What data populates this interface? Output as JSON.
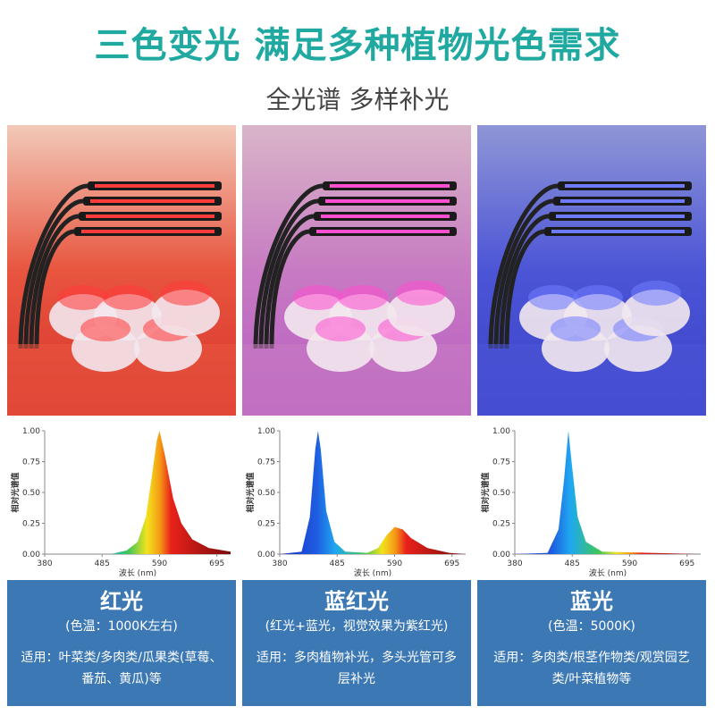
{
  "header": {
    "title": "三色变光 满足多种植物光色需求",
    "subtitle": "全光谱 多样补光"
  },
  "panels": [
    {
      "name": "红光",
      "note": "(色温：1000K左右)",
      "usage": "适用：叶菜类/多肉类/瓜果类(草莓、番茄、黄瓜)等"
    },
    {
      "name": "蓝红光",
      "note": "(红光+蓝光，视觉效果为紫红光)",
      "usage": "适用：多肉植物补光，多头光管可多层补光"
    },
    {
      "name": "蓝光",
      "note": "(色温：5000K)",
      "usage": "适用：多肉类/根茎作物类/观赏园艺类/叶菜植物等"
    }
  ],
  "chart_data": [
    {
      "type": "area",
      "ylabel": "相对光谱值",
      "xlabel": "波长 (nm)",
      "x": [
        380,
        500,
        530,
        550,
        565,
        575,
        585,
        590,
        600,
        615,
        630,
        650,
        680,
        720
      ],
      "values": [
        0,
        0,
        0.03,
        0.1,
        0.3,
        0.6,
        0.92,
        1,
        0.8,
        0.45,
        0.25,
        0.12,
        0.05,
        0.02
      ],
      "xlim": [
        380,
        720
      ],
      "xticks": [
        380,
        485,
        590,
        695
      ],
      "ylim": [
        0,
        1
      ],
      "yticks": [
        {
          "value": 0,
          "label": "0.00"
        },
        {
          "value": 0.25,
          "label": "0.25"
        },
        {
          "value": 0.5,
          "label": "0.50"
        },
        {
          "value": 0.75,
          "label": "0.75"
        },
        {
          "value": 1,
          "label": "1.00"
        }
      ]
    },
    {
      "type": "area",
      "ylabel": "相对光谱值",
      "xlabel": "波长 (nm)",
      "x": [
        380,
        420,
        435,
        445,
        450,
        455,
        465,
        480,
        500,
        540,
        560,
        575,
        590,
        605,
        620,
        650,
        690,
        720
      ],
      "values": [
        0,
        0.02,
        0.3,
        0.85,
        1,
        0.85,
        0.35,
        0.1,
        0.02,
        0.01,
        0.05,
        0.15,
        0.22,
        0.2,
        0.13,
        0.05,
        0.01,
        0
      ],
      "xlim": [
        380,
        720
      ],
      "xticks": [
        380,
        485,
        590,
        695
      ],
      "ylim": [
        0,
        1
      ],
      "yticks": [
        {
          "value": 0,
          "label": "0.00"
        },
        {
          "value": 0.25,
          "label": "0.25"
        },
        {
          "value": 0.5,
          "label": "0.50"
        },
        {
          "value": 0.75,
          "label": "0.75"
        },
        {
          "value": 1,
          "label": "1.00"
        }
      ]
    },
    {
      "type": "area",
      "ylabel": "相对光谱值",
      "xlabel": "波长 (nm)",
      "x": [
        380,
        440,
        460,
        470,
        478,
        485,
        495,
        510,
        540,
        720
      ],
      "values": [
        0,
        0.01,
        0.2,
        0.6,
        1,
        0.7,
        0.3,
        0.1,
        0.02,
        0
      ],
      "xlim": [
        380,
        720
      ],
      "xticks": [
        380,
        485,
        590,
        695
      ],
      "ylim": [
        0,
        1
      ],
      "yticks": [
        {
          "value": 0,
          "label": "0.00"
        },
        {
          "value": 0.25,
          "label": "0.25"
        },
        {
          "value": 0.5,
          "label": "0.50"
        },
        {
          "value": 0.75,
          "label": "0.75"
        },
        {
          "value": 1,
          "label": "1.00"
        }
      ]
    }
  ]
}
